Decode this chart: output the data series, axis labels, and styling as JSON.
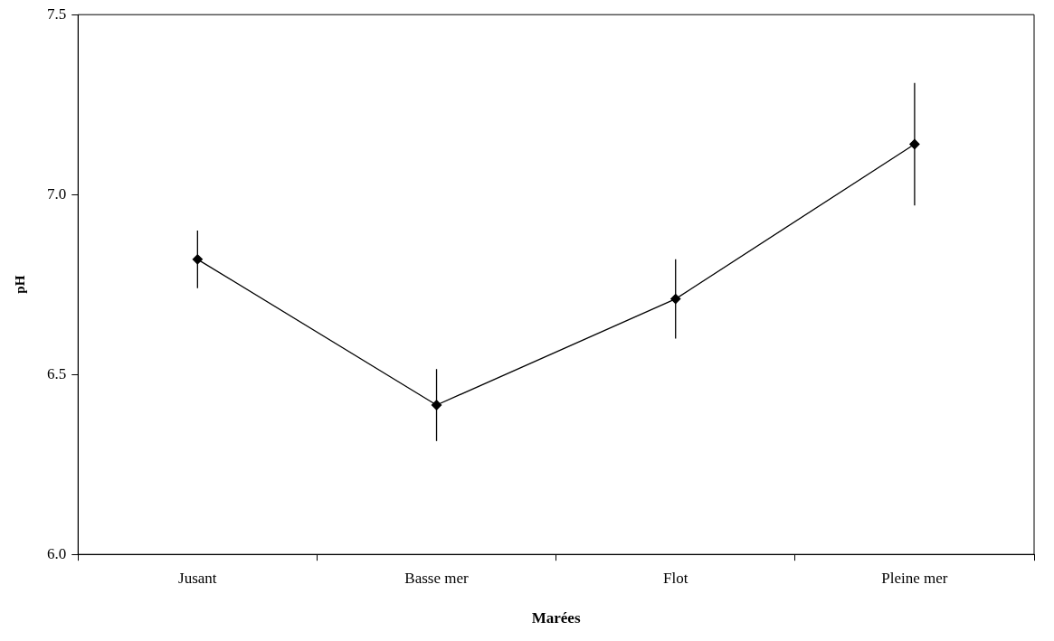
{
  "chart_data": {
    "type": "line",
    "xlabel": "Marées",
    "ylabel": "pH",
    "categories": [
      "Jusant",
      "Basse mer",
      "Flot",
      "Pleine mer"
    ],
    "series": [
      {
        "color": "#000000",
        "values": [
          6.82,
          6.415,
          6.71,
          7.14
        ],
        "errors": [
          0.08,
          0.1,
          0.11,
          0.17
        ]
      }
    ],
    "ylim": [
      6.0,
      7.5
    ],
    "yticks": [
      {
        "value": 6.0,
        "label": "6.0"
      },
      {
        "value": 6.5,
        "label": "6.5"
      },
      {
        "value": 7.0,
        "label": "7.0"
      },
      {
        "value": 7.5,
        "label": "7.5"
      }
    ],
    "grid": false,
    "legend": false,
    "marker": "diamond",
    "line_style": "solid"
  }
}
